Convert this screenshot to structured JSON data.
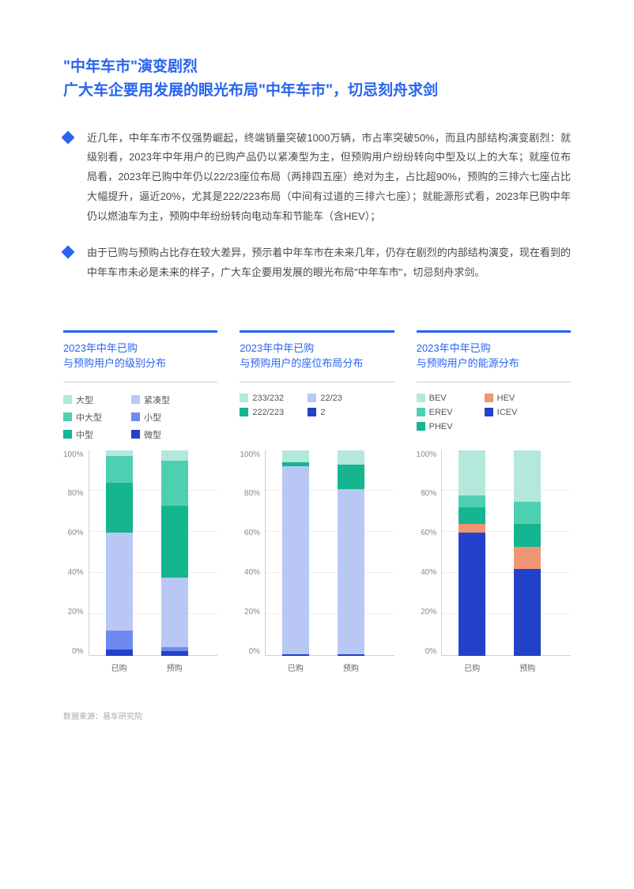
{
  "title_line1": "\"中年车市\"演变剧烈",
  "title_line2": "广大车企要用发展的眼光布局\"中年车市\"，切忌刻舟求剑",
  "bullets": [
    "近几年，中年车市不仅强势崛起，终端销量突破1000万辆，市占率突破50%，而且内部结构演变剧烈：就级别看，2023年中年用户的已购产品仍以紧凑型为主，但预购用户纷纷转向中型及以上的大车；就座位布局看，2023年已购中年仍以22/23座位布局（两排四五座）绝对为主，占比超90%，预购的三排六七座占比大幅提升，逼近20%，尤其是222/223布局（中间有过道的三排六七座）；就能源形式看，2023年已购中年仍以燃油车为主，预购中年纷纷转向电动车和节能车（含HEV）；",
    "由于已购与预购占比存在较大差异，预示着中年车市在未来几年，仍存在剧烈的内部结构演变，现在看到的中年车市未必是未来的样子，广大车企要用发展的眼光布局\"中年车市\"，切忌刻舟求剑。"
  ],
  "yticks": [
    "100%",
    "80%",
    "60%",
    "40%",
    "20%",
    "0%"
  ],
  "x_labels": [
    "已购",
    "预购"
  ],
  "colors": {
    "teal_light": "#b3e8db",
    "teal_mid": "#4dd0b1",
    "teal_dark": "#14b58f",
    "blue_light": "#b9c7f5",
    "blue_mid": "#6e8af2",
    "blue_dark": "#2142c9",
    "orange": "#f09573"
  },
  "chart1": {
    "title": "2023年中年已购\n与预购用户的级别分布",
    "legend": [
      {
        "label": "大型",
        "color": "teal_light"
      },
      {
        "label": "紧凑型",
        "color": "blue_light"
      },
      {
        "label": "中大型",
        "color": "teal_mid"
      },
      {
        "label": "小型",
        "color": "blue_mid"
      },
      {
        "label": "中型",
        "color": "teal_dark"
      },
      {
        "label": "微型",
        "color": "blue_dark"
      }
    ],
    "bars": [
      [
        {
          "color": "blue_dark",
          "value": 3
        },
        {
          "color": "blue_mid",
          "value": 9
        },
        {
          "color": "blue_light",
          "value": 48
        },
        {
          "color": "teal_dark",
          "value": 24
        },
        {
          "color": "teal_mid",
          "value": 13
        },
        {
          "color": "teal_light",
          "value": 3
        }
      ],
      [
        {
          "color": "blue_dark",
          "value": 2
        },
        {
          "color": "blue_mid",
          "value": 2
        },
        {
          "color": "blue_light",
          "value": 34
        },
        {
          "color": "teal_dark",
          "value": 35
        },
        {
          "color": "teal_mid",
          "value": 22
        },
        {
          "color": "teal_light",
          "value": 5
        }
      ]
    ]
  },
  "chart2": {
    "title": "2023年中年已购\n与预购用户的座位布局分布",
    "legend": [
      {
        "label": "233/232",
        "color": "teal_light"
      },
      {
        "label": "22/23",
        "color": "blue_light"
      },
      {
        "label": "222/223",
        "color": "teal_dark"
      },
      {
        "label": "2",
        "color": "blue_dark"
      }
    ],
    "bars": [
      [
        {
          "color": "blue_dark",
          "value": 0.5
        },
        {
          "color": "blue_light",
          "value": 91.5
        },
        {
          "color": "teal_dark",
          "value": 2
        },
        {
          "color": "teal_light",
          "value": 6
        }
      ],
      [
        {
          "color": "blue_dark",
          "value": 0.5
        },
        {
          "color": "blue_light",
          "value": 80.5
        },
        {
          "color": "teal_dark",
          "value": 12
        },
        {
          "color": "teal_light",
          "value": 7
        }
      ]
    ]
  },
  "chart3": {
    "title": "2023年中年已购\n与预购用户的能源分布",
    "legend": [
      {
        "label": "BEV",
        "color": "teal_light"
      },
      {
        "label": "HEV",
        "color": "orange"
      },
      {
        "label": "EREV",
        "color": "teal_mid"
      },
      {
        "label": "ICEV",
        "color": "blue_dark"
      },
      {
        "label": "PHEV",
        "color": "teal_dark"
      }
    ],
    "bars": [
      [
        {
          "color": "blue_dark",
          "value": 60
        },
        {
          "color": "orange",
          "value": 4
        },
        {
          "color": "teal_dark",
          "value": 8
        },
        {
          "color": "teal_mid",
          "value": 6
        },
        {
          "color": "teal_light",
          "value": 22
        }
      ],
      [
        {
          "color": "blue_dark",
          "value": 42
        },
        {
          "color": "orange",
          "value": 11
        },
        {
          "color": "teal_dark",
          "value": 11
        },
        {
          "color": "teal_mid",
          "value": 11
        },
        {
          "color": "teal_light",
          "value": 25
        }
      ]
    ]
  },
  "source": "数据来源：易车研究院"
}
